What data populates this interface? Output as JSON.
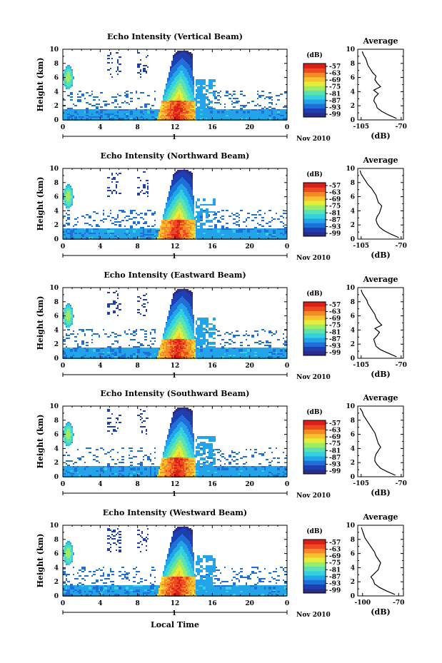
{
  "colors": [
    "#2b2b8a",
    "#1e3fb0",
    "#1f6fd8",
    "#23a3e8",
    "#35d0e0",
    "#5ce2b0",
    "#9cec6a",
    "#e3ee3a",
    "#f8c130",
    "#f58a26",
    "#ee4a22",
    "#d92018"
  ],
  "figure": {
    "xlabel": "Local Time",
    "date_label": "Nov 2010",
    "day_label": "1",
    "colorbar_unit": "(dB)",
    "colorbar_ticks": [
      "-57",
      "-63",
      "-69",
      "-75",
      "-81",
      "-87",
      "-93",
      "-99"
    ],
    "avg_title": "Average",
    "avg_xlabel": "(dB)"
  },
  "chart_data": [
    {
      "type": "heatmap",
      "title": "Echo Intensity (Vertical Beam)",
      "ylabel": "Height (km)",
      "x_ticks": [
        "0",
        "4",
        "8",
        "12",
        "16",
        "20",
        "0"
      ],
      "y_ticks": [
        "0",
        "2",
        "4",
        "6",
        "8",
        "10"
      ],
      "xlim": [
        0,
        24
      ],
      "ylim": [
        0,
        10
      ],
      "profile": {
        "title": "Average",
        "xlabel": "(dB)",
        "x_ticks": [
          "-105",
          "-70"
        ],
        "xlim": [
          -108,
          -68
        ],
        "ylim": [
          0,
          10
        ],
        "heights": [
          0.2,
          0.7,
          1.2,
          1.7,
          2.2,
          2.7,
          3.2,
          3.7,
          4.2,
          4.7,
          5.2,
          5.7,
          6.2,
          6.7,
          7.2,
          7.7,
          8.2,
          8.7,
          9.2,
          9.7
        ],
        "values": [
          -74,
          -81,
          -87,
          -91,
          -92,
          -94,
          -93,
          -90,
          -94,
          -88,
          -91,
          -93,
          -92,
          -95,
          -97,
          -99,
          -100,
          -101,
          -103,
          -104
        ]
      }
    },
    {
      "type": "heatmap",
      "title": "Echo Intensity (Northward Beam)",
      "ylabel": "Height (km)",
      "x_ticks": [
        "0",
        "4",
        "8",
        "12",
        "16",
        "20",
        "0"
      ],
      "y_ticks": [
        "0",
        "2",
        "4",
        "6",
        "8",
        "10"
      ],
      "xlim": [
        0,
        24
      ],
      "ylim": [
        0,
        10
      ],
      "profile": {
        "title": "Average",
        "xlabel": "(dB)",
        "x_ticks": [
          "-105",
          "-70"
        ],
        "xlim": [
          -108,
          -68
        ],
        "ylim": [
          0,
          10
        ],
        "heights": [
          0.2,
          0.7,
          1.2,
          1.7,
          2.2,
          2.7,
          3.2,
          3.7,
          4.2,
          4.7,
          5.2,
          5.7,
          6.2,
          6.7,
          7.2,
          7.7,
          8.2,
          8.7,
          9.2,
          9.7
        ],
        "values": [
          -72,
          -79,
          -85,
          -89,
          -91,
          -92,
          -91,
          -89,
          -88,
          -87,
          -90,
          -91,
          -92,
          -94,
          -96,
          -99,
          -101,
          -103,
          -105,
          -106
        ]
      }
    },
    {
      "type": "heatmap",
      "title": "Echo Intensity (Eastward Beam)",
      "ylabel": "Height (km)",
      "x_ticks": [
        "0",
        "4",
        "8",
        "12",
        "16",
        "20",
        "0"
      ],
      "y_ticks": [
        "0",
        "2",
        "4",
        "6",
        "8",
        "10"
      ],
      "xlim": [
        0,
        24
      ],
      "ylim": [
        0,
        10
      ],
      "profile": {
        "title": "Average",
        "xlabel": "(dB)",
        "x_ticks": [
          "-105",
          "-70"
        ],
        "xlim": [
          -108,
          -68
        ],
        "ylim": [
          0,
          10
        ],
        "heights": [
          0.2,
          0.7,
          1.2,
          1.7,
          2.2,
          2.7,
          3.2,
          3.7,
          4.2,
          4.7,
          5.2,
          5.7,
          6.2,
          6.7,
          7.2,
          7.7,
          8.2,
          8.7,
          9.2,
          9.7
        ],
        "values": [
          -74,
          -81,
          -88,
          -92,
          -93,
          -94,
          -91,
          -89,
          -93,
          -87,
          -90,
          -92,
          -93,
          -95,
          -97,
          -99,
          -100,
          -102,
          -104,
          -105
        ]
      }
    },
    {
      "type": "heatmap",
      "title": "Echo Intensity (Southward Beam)",
      "ylabel": "Height (km)",
      "x_ticks": [
        "0",
        "4",
        "8",
        "12",
        "16",
        "20",
        "0"
      ],
      "y_ticks": [
        "0",
        "2",
        "4",
        "6",
        "8",
        "10"
      ],
      "xlim": [
        0,
        24
      ],
      "ylim": [
        0,
        10
      ],
      "profile": {
        "title": "Average",
        "xlabel": "(dB)",
        "x_ticks": [
          "-105",
          "-70"
        ],
        "xlim": [
          -108,
          -68
        ],
        "ylim": [
          0,
          10
        ],
        "heights": [
          0.2,
          0.7,
          1.2,
          1.7,
          2.2,
          2.7,
          3.2,
          3.7,
          4.2,
          4.7,
          5.2,
          5.7,
          6.2,
          6.7,
          7.2,
          7.7,
          8.2,
          8.7,
          9.2,
          9.7
        ],
        "values": [
          -75,
          -82,
          -88,
          -91,
          -93,
          -93,
          -92,
          -90,
          -88,
          -90,
          -91,
          -92,
          -93,
          -95,
          -97,
          -99,
          -101,
          -103,
          -104,
          -106
        ]
      }
    },
    {
      "type": "heatmap",
      "title": "Echo Intensity (Westward Beam)",
      "ylabel": "Height (km)",
      "x_ticks": [
        "0",
        "4",
        "8",
        "12",
        "16",
        "20",
        "0"
      ],
      "y_ticks": [
        "0",
        "2",
        "4",
        "6",
        "8",
        "10"
      ],
      "xlim": [
        0,
        24
      ],
      "ylim": [
        0,
        10
      ],
      "profile": {
        "title": "Average",
        "xlabel": "(dB)",
        "x_ticks": [
          "-100",
          "-70"
        ],
        "xlim": [
          -104,
          -66
        ],
        "ylim": [
          0,
          10
        ],
        "heights": [
          0.2,
          0.7,
          1.2,
          1.7,
          2.2,
          2.7,
          3.2,
          3.7,
          4.2,
          4.7,
          5.2,
          5.7,
          6.2,
          6.7,
          7.2,
          7.7,
          8.2,
          8.7,
          9.2,
          9.7
        ],
        "values": [
          -73,
          -80,
          -86,
          -90,
          -91,
          -93,
          -90,
          -87,
          -86,
          -85,
          -87,
          -89,
          -90,
          -92,
          -94,
          -96,
          -98,
          -99,
          -100,
          -101
        ]
      }
    }
  ]
}
